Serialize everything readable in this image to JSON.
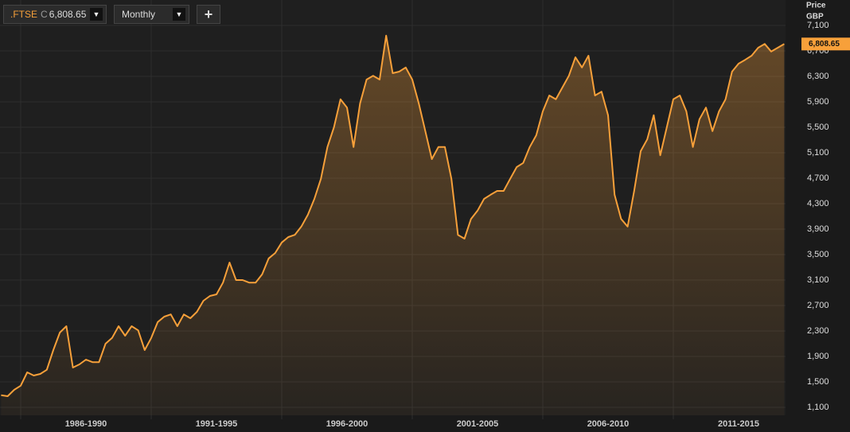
{
  "header": {
    "symbol": ".FTSE",
    "close_prefix": "C",
    "close": "6,808.65",
    "symbol_arrow": "▼",
    "interval": "Monthly",
    "interval_arrow": "▼",
    "add_button": "+"
  },
  "chart_data": {
    "type": "area",
    "y_label": "Price",
    "currency": "GBP",
    "last_label": "6,808.65",
    "line_color": "#f7a03a",
    "label_color": "#f7a03a",
    "grid": true,
    "categories": [
      null,
      null,
      null,
      null,
      null,
      null,
      null,
      null,
      null,
      null,
      null,
      null,
      null,
      "1986-1990",
      null,
      null,
      null,
      null,
      null,
      null,
      null,
      null,
      null,
      null,
      null,
      null,
      null,
      null,
      null,
      null,
      null,
      null,
      null,
      "1991-1995",
      null,
      null,
      null,
      null,
      null,
      null,
      null,
      null,
      null,
      null,
      null,
      null,
      null,
      null,
      null,
      null,
      null,
      null,
      null,
      "1996-2000",
      null,
      null,
      null,
      null,
      null,
      null,
      null,
      null,
      null,
      null,
      null,
      null,
      null,
      null,
      null,
      null,
      null,
      null,
      null,
      "2001-2005",
      null,
      null,
      null,
      null,
      null,
      null,
      null,
      null,
      null,
      null,
      null,
      null,
      null,
      null,
      null,
      null,
      null,
      null,
      null,
      "2006-2010",
      null,
      null,
      null,
      null,
      null,
      null,
      null,
      null,
      null,
      null,
      null,
      null,
      null,
      null,
      null,
      null,
      null,
      null,
      null,
      "2011-2015",
      null,
      null,
      null,
      null,
      null,
      null,
      null
    ],
    "series": [
      {
        "name": ".FTSE",
        "color": "#f7a03a",
        "values": [
          1290,
          1275,
          1375,
          1440,
          1650,
          1600,
          1625,
          1690,
          2000,
          2275,
          2375,
          1725,
          1775,
          1850,
          1810,
          1810,
          2100,
          2190,
          2375,
          2225,
          2375,
          2310,
          2000,
          2190,
          2440,
          2525,
          2560,
          2375,
          2560,
          2500,
          2600,
          2775,
          2850,
          2875,
          3060,
          3375,
          3100,
          3100,
          3060,
          3060,
          3190,
          3440,
          3525,
          3690,
          3775,
          3810,
          3940,
          4125,
          4375,
          4690,
          5190,
          5500,
          5940,
          5810,
          5190,
          5875,
          6250,
          6310,
          6250,
          6940,
          6350,
          6375,
          6440,
          6250,
          5875,
          5440,
          5000,
          5190,
          5190,
          4690,
          3810,
          3750,
          4060,
          4190,
          4375,
          4440,
          4500,
          4500,
          4690,
          4875,
          4940,
          5190,
          5375,
          5750,
          6000,
          5940,
          6125,
          6310,
          6600,
          6440,
          6625,
          6000,
          6060,
          5690,
          4440,
          4060,
          3940,
          4500,
          5125,
          5310,
          5690,
          5060,
          5500,
          5940,
          6000,
          5750,
          5190,
          5625,
          5810,
          5440,
          5750,
          5940,
          6375,
          6500,
          6560,
          6625,
          6750,
          6810,
          6690,
          6750,
          6808.65
        ]
      }
    ],
    "ylim": [
      975,
      7500
    ],
    "yticks": [
      {
        "value": 1100,
        "label": "1,100"
      },
      {
        "value": 1500,
        "label": "1,500"
      },
      {
        "value": 1900,
        "label": "1,900"
      },
      {
        "value": 2300,
        "label": "2,300"
      },
      {
        "value": 2700,
        "label": "2,700"
      },
      {
        "value": 3100,
        "label": "3,100"
      },
      {
        "value": 3500,
        "label": "3,500"
      },
      {
        "value": 3900,
        "label": "3,900"
      },
      {
        "value": 4300,
        "label": "4,300"
      },
      {
        "value": 4700,
        "label": "4,700"
      },
      {
        "value": 5100,
        "label": "5,100"
      },
      {
        "value": 5500,
        "label": "5,500"
      },
      {
        "value": 5900,
        "label": "5,900"
      },
      {
        "value": 6300,
        "label": "6,300"
      },
      {
        "value": 6700,
        "label": "6,700"
      },
      {
        "value": 7100,
        "label": "7,100"
      }
    ]
  }
}
